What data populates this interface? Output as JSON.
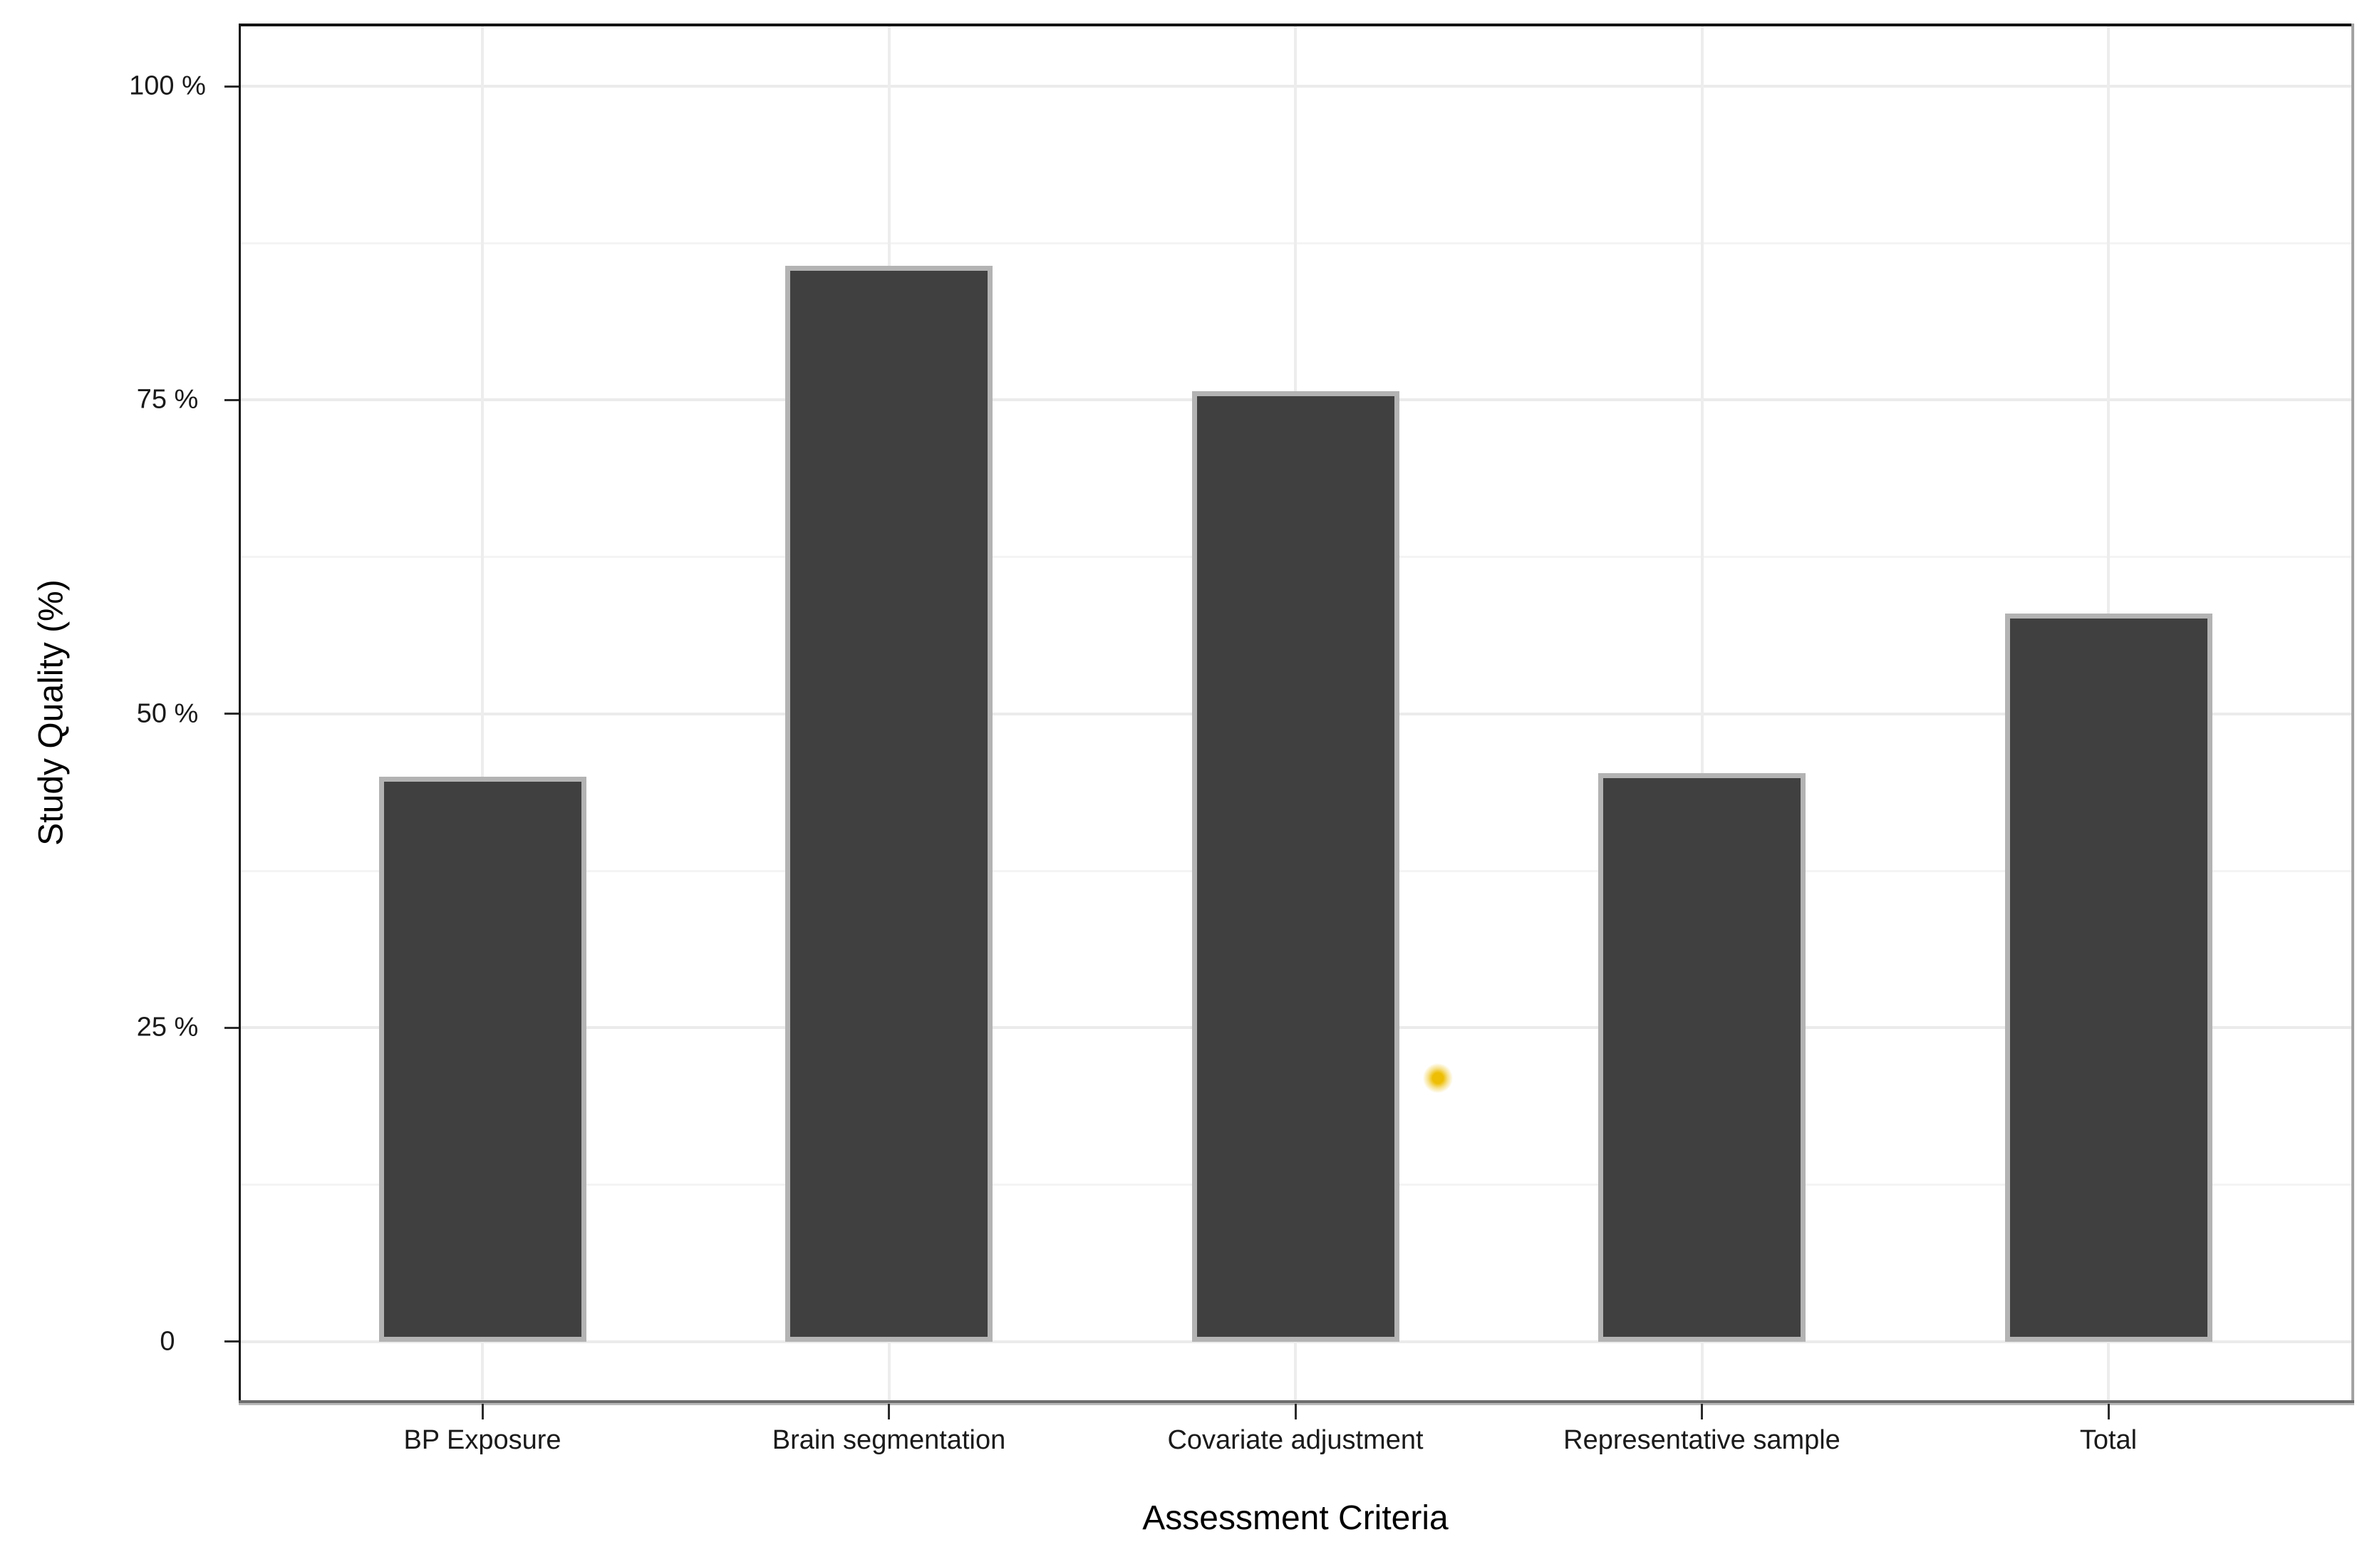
{
  "chart_data": {
    "type": "bar",
    "title": "",
    "xlabel": "Assessment Criteria",
    "ylabel": "Study Quality (%)",
    "categories": [
      "BP Exposure",
      "Brain segmentation",
      "Covariate adjustment",
      "Representative sample",
      "Total"
    ],
    "values": [
      45,
      85.7,
      75.7,
      45.3,
      58
    ],
    "unit": "percent",
    "ylim": [
      0,
      105
    ],
    "yticks_values": [
      0,
      25,
      50,
      75,
      100
    ],
    "ytick_labels": [
      "0",
      "25 %",
      "50 %",
      "75 %",
      "100 %"
    ],
    "yticks_minor": [
      12.5,
      37.5,
      62.5,
      87.5
    ],
    "grid": "horizontal major+minor, vertical major at category centers",
    "legend_position": "none",
    "bar_fill_color": "#404040",
    "bar_border_color": "#b3b3b3",
    "annotation_marker": {
      "shape": "small-yellow-star",
      "color": "#edbe04",
      "near_category": "Covariate adjustment",
      "position": "right of bar",
      "value_pct": 21
    }
  }
}
